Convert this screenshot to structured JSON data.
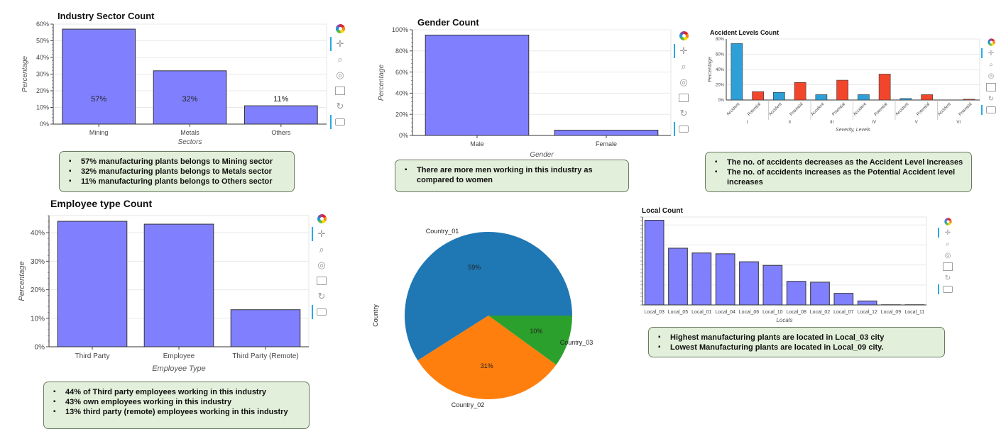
{
  "colors": {
    "bar": "#8080ff",
    "bar_stroke": "#333333",
    "accident": "#2f9fd8",
    "potential": "#f2462c",
    "pie": [
      "#1f77b4",
      "#ff7f0e",
      "#2ca02c"
    ],
    "note_bg": "#e2efda"
  },
  "toolbar_icons": [
    "bokeh-logo-icon",
    "pan-icon",
    "box-zoom-icon",
    "wheel-zoom-icon",
    "save-icon",
    "reset-icon",
    "hover-icon"
  ],
  "charts": {
    "industry": {
      "title": "Industry Sector Count",
      "chart_data": {
        "type": "bar",
        "categories": [
          "Mining",
          "Metals",
          "Others"
        ],
        "values": [
          57,
          32,
          11
        ],
        "data_labels": [
          "57%",
          "32%",
          "11%"
        ],
        "xlabel": "Sectors",
        "ylabel": "Percentage",
        "ylim": [
          0,
          60
        ],
        "yticks": [
          "0%",
          "10%",
          "20%",
          "30%",
          "40%",
          "50%",
          "60%"
        ],
        "grid": true
      }
    },
    "gender": {
      "title": "Gender Count",
      "chart_data": {
        "type": "bar",
        "categories": [
          "Male",
          "Female"
        ],
        "values": [
          95,
          5
        ],
        "xlabel": "Gender",
        "ylabel": "Percentage",
        "ylim": [
          0,
          100
        ],
        "yticks": [
          "0%",
          "20%",
          "40%",
          "60%",
          "80%",
          "100%"
        ],
        "grid": true
      }
    },
    "accident": {
      "title": "Accident Levels Count",
      "chart_data": {
        "type": "bar",
        "groups": [
          "I",
          "II",
          "III",
          "IV",
          "V",
          "VI"
        ],
        "sub_categories": [
          "Accident",
          "Potential"
        ],
        "series": [
          {
            "name": "Accident",
            "values": [
              74,
              10,
              7,
              7,
              2,
              0
            ]
          },
          {
            "name": "Potential",
            "values": [
              11,
              23,
              26,
              34,
              7,
              1
            ]
          }
        ],
        "xlabel": "Severity, Levels",
        "ylabel": "Percentage",
        "ylim": [
          0,
          80
        ],
        "yticks": [
          "0%",
          "20%",
          "40%",
          "60%",
          "80%"
        ],
        "grid": true
      }
    },
    "employee": {
      "title": "Employee type Count",
      "chart_data": {
        "type": "bar",
        "categories": [
          "Third Party",
          "Employee",
          "Third Party (Remote)"
        ],
        "values": [
          44,
          43,
          13
        ],
        "xlabel": "Employee Type",
        "ylabel": "Percentage",
        "ylim": [
          0,
          46
        ],
        "yticks": [
          "0%",
          "10%",
          "20%",
          "30%",
          "40%"
        ],
        "grid": true
      }
    },
    "country": {
      "chart_data": {
        "type": "pie",
        "categories": [
          "Country_01",
          "Country_02",
          "Country_03"
        ],
        "values": [
          59,
          31,
          10
        ],
        "data_labels": [
          "59%",
          "31%",
          "10%"
        ],
        "ylabel": "Country"
      }
    },
    "local": {
      "title": "Local Count",
      "chart_data": {
        "type": "bar",
        "categories": [
          "Local_03",
          "Local_05",
          "Local_01",
          "Local_04",
          "Local_06",
          "Local_10",
          "Local_08",
          "Local_02",
          "Local_07",
          "Local_12",
          "Local_09",
          "Local_11"
        ],
        "values": [
          21.2,
          14.2,
          13.0,
          12.8,
          10.8,
          9.9,
          5.9,
          5.7,
          2.9,
          1.0,
          0.05,
          0.05
        ],
        "xlabel": "Locals",
        "ylim": [
          0,
          22
        ],
        "grid": true
      }
    }
  },
  "notes": {
    "industry": [
      "57% manufacturing plants belongs to Mining sector",
      "32% manufacturing plants belongs to Metals sector",
      "11% manufacturing plants belongs to Others sector"
    ],
    "gender": [
      "There are more men working in this industry as compared to women"
    ],
    "accident": [
      "The no. of accidents decreases as the Accident Level increases",
      "The no. of accidents increases as the Potential Accident level increases"
    ],
    "employee": [
      "44% of Third party employees working in this industry",
      "43% own employees working in this industry",
      "13% third party (remote) employees working in this industry"
    ],
    "local": [
      "Highest manufacturing plants are located in Local_03 city",
      "Lowest Manufacturing plants are located in Local_09 city."
    ]
  }
}
